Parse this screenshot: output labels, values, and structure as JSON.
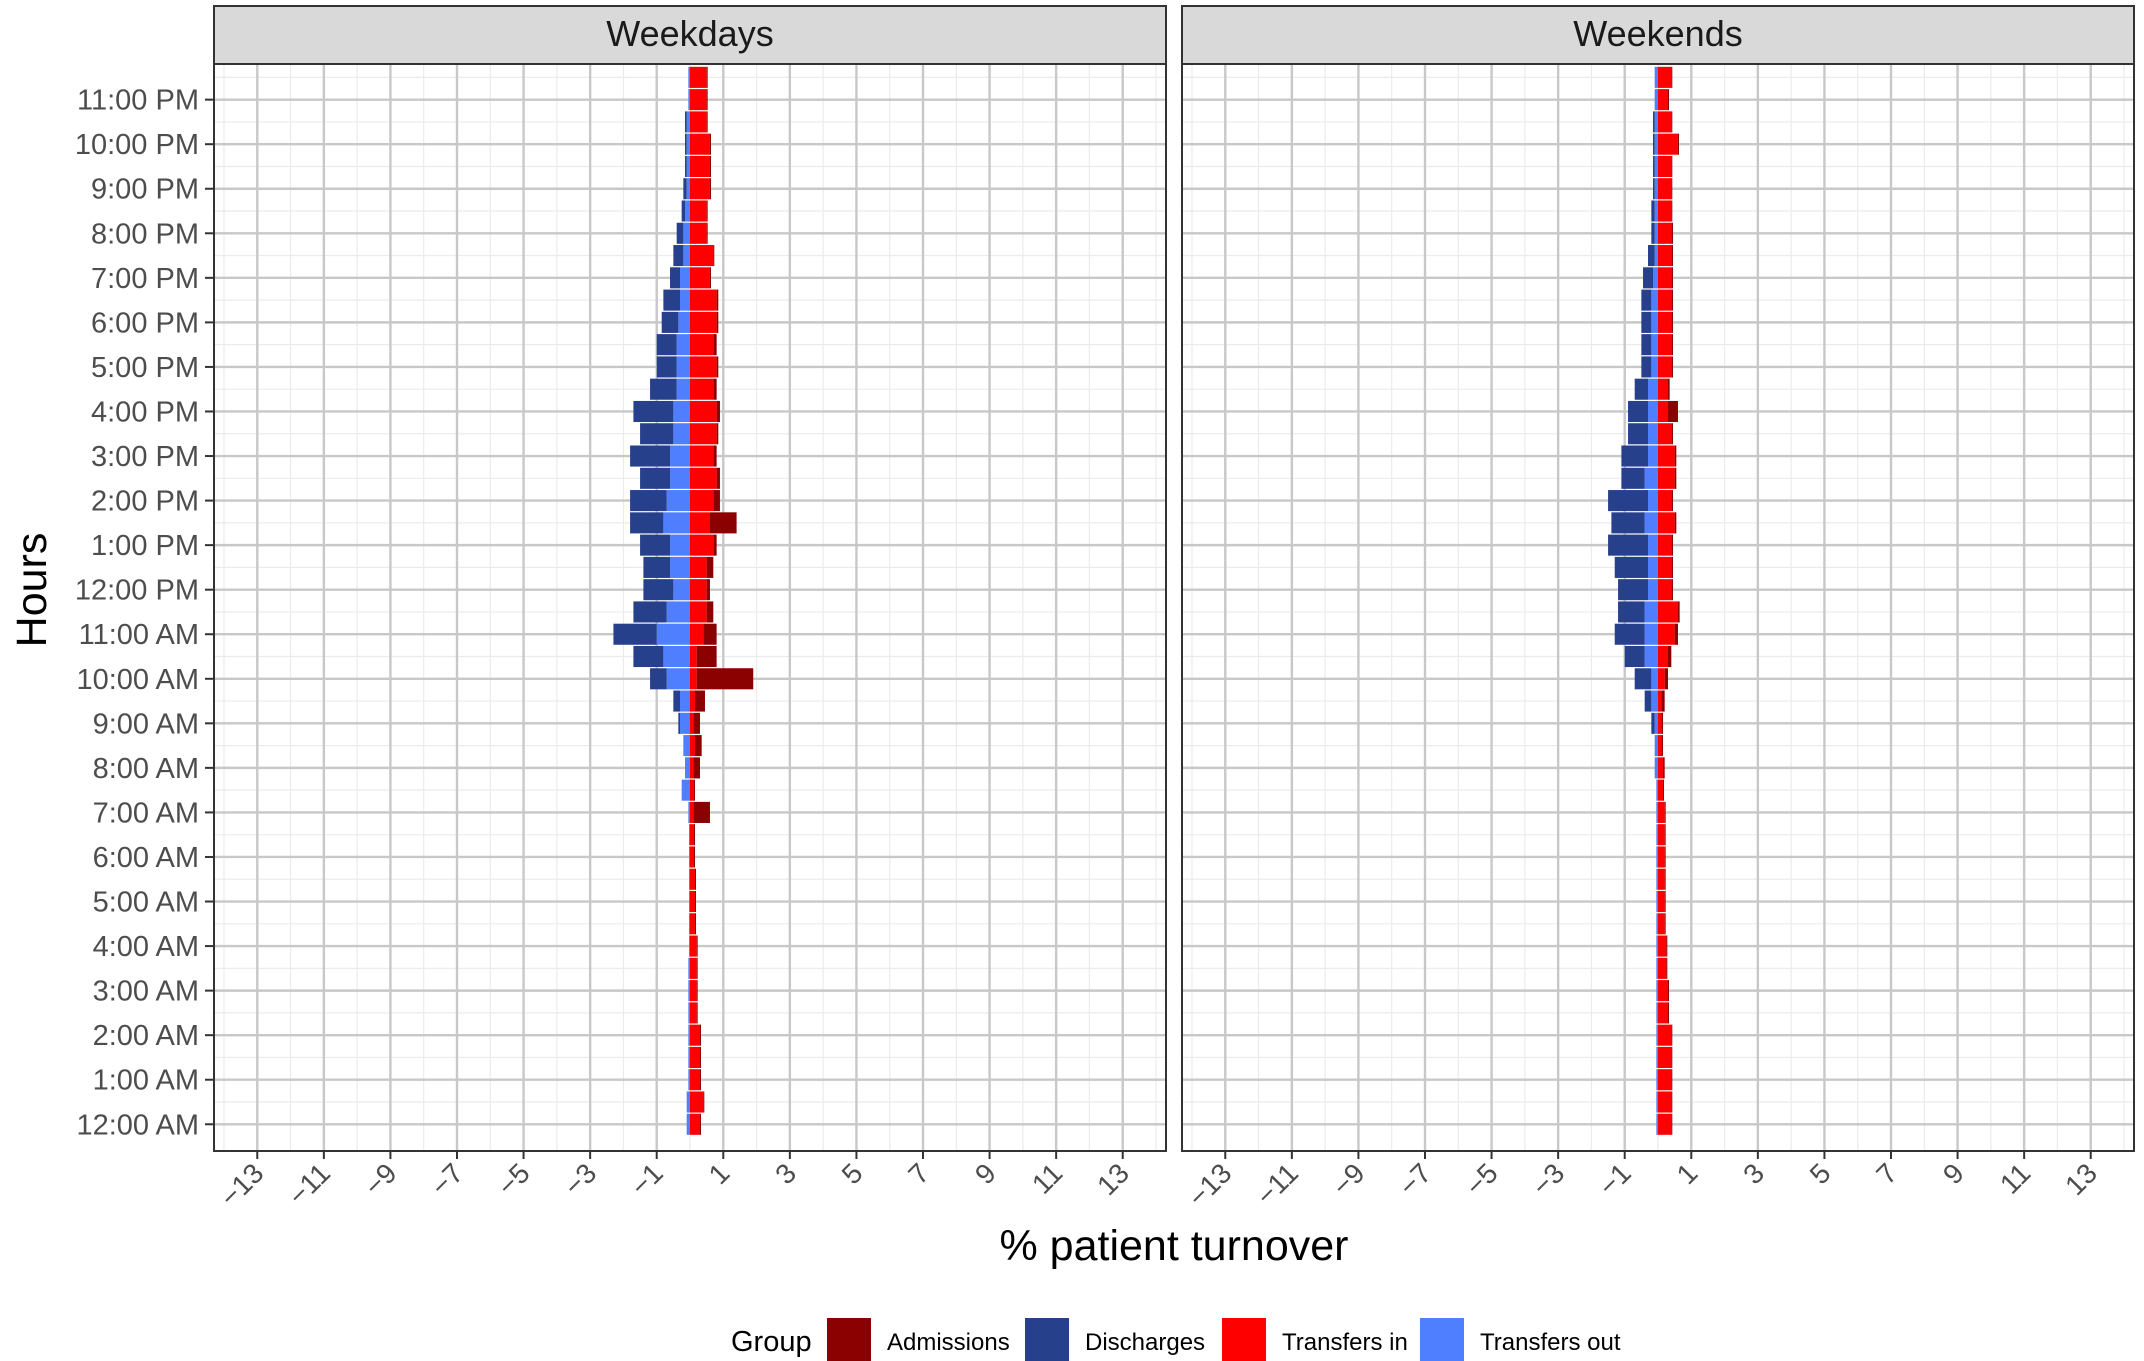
{
  "chart_data": {
    "type": "bar",
    "orientation": "horizontal",
    "xlabel": "% patient turnover",
    "ylabel": "Hours",
    "xlim": [
      -14.3,
      14.3
    ],
    "x_ticks": [
      "−13",
      "−11",
      "−9",
      "−7",
      "−5",
      "−3",
      "−1",
      "1",
      "3",
      "5",
      "7",
      "9",
      "11",
      "13"
    ],
    "x_tick_values": [
      -13,
      -11,
      -9,
      -7,
      -5,
      -3,
      -1,
      1,
      3,
      5,
      7,
      9,
      11,
      13
    ],
    "y_ticks": [
      "12:00 AM",
      "1:00 AM",
      "2:00 AM",
      "3:00 AM",
      "4:00 AM",
      "5:00 AM",
      "6:00 AM",
      "7:00 AM",
      "8:00 AM",
      "9:00 AM",
      "10:00 AM",
      "11:00 AM",
      "12:00 PM",
      "1:00 PM",
      "2:00 PM",
      "3:00 PM",
      "4:00 PM",
      "5:00 PM",
      "6:00 PM",
      "7:00 PM",
      "8:00 PM",
      "9:00 PM",
      "10:00 PM",
      "11:00 PM"
    ],
    "time_slots": [
      0,
      0.5,
      1,
      1.5,
      2,
      2.5,
      3,
      3.5,
      4,
      4.5,
      5,
      5.5,
      6,
      6.5,
      7,
      7.5,
      8,
      8.5,
      9,
      9.5,
      10,
      10.5,
      11,
      11.5,
      12,
      12.5,
      13,
      13.5,
      14,
      14.5,
      15,
      15.5,
      16,
      16.5,
      17,
      17.5,
      18,
      18.5,
      19,
      19.5,
      20,
      20.5,
      21,
      21.5,
      22,
      22.5,
      23,
      23.5
    ],
    "legend": {
      "title": "Group",
      "position": "bottom",
      "entries": [
        {
          "name": "Admissions",
          "color": "#8B0000"
        },
        {
          "name": "Discharges",
          "color": "#27408B"
        },
        {
          "name": "Transfers in",
          "color": "#FF0000"
        },
        {
          "name": "Transfers out",
          "color": "#4F7FFF"
        }
      ]
    },
    "stacking": "positive: Transfers in then Admissions; negative: Transfers out then Discharges",
    "panels": [
      {
        "name": "Weekdays",
        "series": [
          {
            "name": "Transfers in",
            "values": [
              0.3,
              0.4,
              0.3,
              0.3,
              0.3,
              0.2,
              0.2,
              0.2,
              0.2,
              0.15,
              0.15,
              0.15,
              0.12,
              0.12,
              0.1,
              0.12,
              0.1,
              0.15,
              0.1,
              0.15,
              0.2,
              0.2,
              0.4,
              0.5,
              0.5,
              0.5,
              0.7,
              0.6,
              0.7,
              0.8,
              0.7,
              0.8,
              0.8,
              0.7,
              0.8,
              0.7,
              0.8,
              0.8,
              0.6,
              0.7,
              0.5,
              0.5,
              0.6,
              0.6,
              0.6,
              0.5,
              0.5,
              0.5
            ]
          },
          {
            "name": "Admissions",
            "values": [
              0.03,
              0.03,
              0.03,
              0.03,
              0.03,
              0.03,
              0.03,
              0.03,
              0.03,
              0.03,
              0.03,
              0.03,
              0.03,
              0.03,
              0.5,
              0.03,
              0.2,
              0.2,
              0.2,
              0.3,
              1.7,
              0.6,
              0.4,
              0.2,
              0.1,
              0.2,
              0.1,
              0.8,
              0.2,
              0.1,
              0.1,
              0.05,
              0.1,
              0.1,
              0.05,
              0.1,
              0.05,
              0.05,
              0.03,
              0.03,
              0.03,
              0.03,
              0.03,
              0.03,
              0.03,
              0.03,
              0.03,
              0.03
            ]
          },
          {
            "name": "Transfers out",
            "values": [
              -0.1,
              -0.1,
              -0.05,
              -0.05,
              -0.05,
              -0.05,
              -0.05,
              -0.05,
              -0.03,
              -0.03,
              -0.03,
              -0.03,
              -0.03,
              -0.03,
              -0.05,
              -0.25,
              -0.15,
              -0.2,
              -0.3,
              -0.3,
              -0.7,
              -0.8,
              -1.0,
              -0.7,
              -0.5,
              -0.6,
              -0.6,
              -0.8,
              -0.7,
              -0.6,
              -0.6,
              -0.5,
              -0.5,
              -0.4,
              -0.4,
              -0.4,
              -0.35,
              -0.3,
              -0.3,
              -0.2,
              -0.2,
              -0.15,
              -0.1,
              -0.1,
              -0.1,
              -0.1,
              -0.05,
              -0.05
            ]
          },
          {
            "name": "Discharges",
            "values": [
              0,
              0,
              0,
              0,
              0,
              0,
              0,
              0,
              0,
              0,
              0,
              0,
              0,
              0,
              0,
              0,
              0,
              0,
              -0.05,
              -0.2,
              -0.5,
              -0.9,
              -1.3,
              -1.0,
              -0.9,
              -0.8,
              -0.9,
              -1.0,
              -1.1,
              -0.9,
              -1.2,
              -1.0,
              -1.2,
              -0.8,
              -0.6,
              -0.6,
              -0.5,
              -0.5,
              -0.3,
              -0.3,
              -0.2,
              -0.1,
              -0.1,
              -0.05,
              -0.05,
              -0.05,
              0,
              0
            ]
          }
        ]
      },
      {
        "name": "Weekends",
        "series": [
          {
            "name": "Transfers in",
            "values": [
              0.4,
              0.4,
              0.4,
              0.4,
              0.4,
              0.3,
              0.3,
              0.25,
              0.25,
              0.2,
              0.2,
              0.2,
              0.2,
              0.2,
              0.2,
              0.15,
              0.15,
              0.1,
              0.1,
              0.1,
              0.2,
              0.3,
              0.5,
              0.6,
              0.4,
              0.4,
              0.4,
              0.5,
              0.4,
              0.5,
              0.5,
              0.4,
              0.3,
              0.3,
              0.4,
              0.4,
              0.4,
              0.4,
              0.4,
              0.4,
              0.4,
              0.4,
              0.4,
              0.4,
              0.6,
              0.4,
              0.3,
              0.4
            ]
          },
          {
            "name": "Admissions",
            "values": [
              0.03,
              0.03,
              0.03,
              0.03,
              0.03,
              0.03,
              0.03,
              0.03,
              0.03,
              0.03,
              0.03,
              0.03,
              0.03,
              0.03,
              0.03,
              0.03,
              0.05,
              0.05,
              0.05,
              0.1,
              0.1,
              0.1,
              0.1,
              0.05,
              0.05,
              0.05,
              0.05,
              0.05,
              0.05,
              0.05,
              0.05,
              0.05,
              0.3,
              0.05,
              0.05,
              0.05,
              0.05,
              0.05,
              0.05,
              0.05,
              0.05,
              0.03,
              0.03,
              0.03,
              0.03,
              0.03,
              0.03,
              0.03
            ]
          },
          {
            "name": "Transfers out",
            "values": [
              -0.05,
              -0.05,
              -0.05,
              -0.05,
              -0.05,
              -0.05,
              -0.05,
              -0.05,
              -0.05,
              -0.05,
              -0.05,
              -0.05,
              -0.05,
              -0.05,
              -0.05,
              -0.05,
              -0.1,
              -0.1,
              -0.1,
              -0.2,
              -0.2,
              -0.4,
              -0.4,
              -0.4,
              -0.3,
              -0.3,
              -0.3,
              -0.4,
              -0.3,
              -0.4,
              -0.3,
              -0.3,
              -0.3,
              -0.3,
              -0.2,
              -0.2,
              -0.2,
              -0.2,
              -0.15,
              -0.1,
              -0.1,
              -0.1,
              -0.1,
              -0.1,
              -0.1,
              -0.1,
              -0.1,
              -0.1
            ]
          },
          {
            "name": "Discharges",
            "values": [
              0,
              0,
              0,
              0,
              0,
              0,
              0,
              0,
              0,
              0,
              0,
              0,
              0,
              0,
              0,
              0,
              0,
              0,
              -0.1,
              -0.2,
              -0.5,
              -0.6,
              -0.9,
              -0.8,
              -0.9,
              -1.0,
              -1.2,
              -1.0,
              -1.2,
              -0.7,
              -0.8,
              -0.6,
              -0.6,
              -0.4,
              -0.3,
              -0.3,
              -0.3,
              -0.3,
              -0.3,
              -0.2,
              -0.1,
              -0.1,
              -0.05,
              -0.05,
              -0.05,
              -0.05,
              0,
              0
            ]
          }
        ]
      }
    ]
  }
}
